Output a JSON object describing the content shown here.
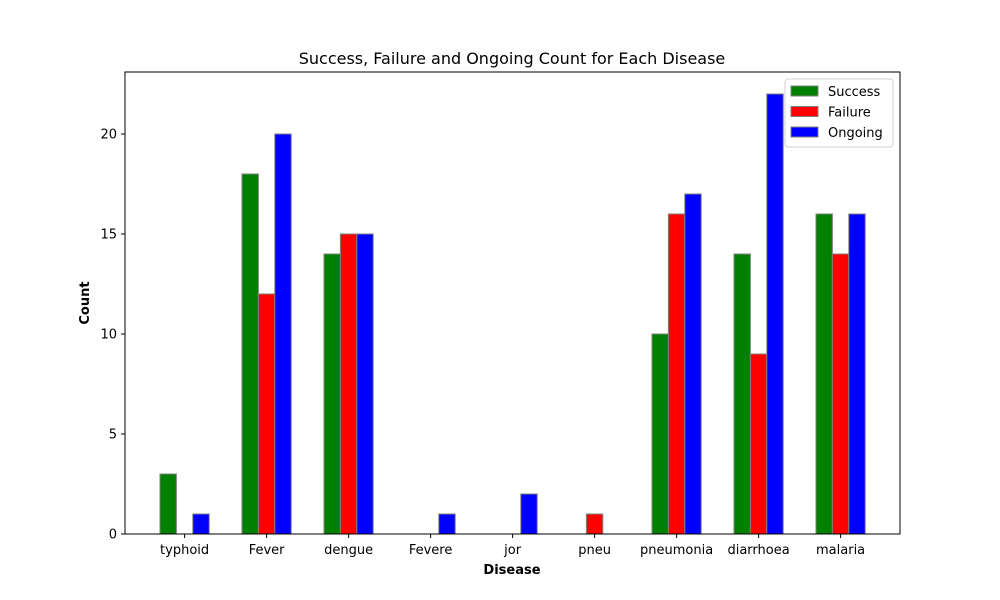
{
  "chart_data": {
    "type": "bar",
    "title": "Success, Failure and Ongoing Count for Each Disease",
    "xlabel": "Disease",
    "ylabel": "Count",
    "categories": [
      "typhoid",
      "Fever",
      "dengue",
      "Fevere",
      "jor",
      "pneu",
      "pneumonia",
      "diarrhoea",
      "malaria"
    ],
    "series": [
      {
        "name": "Success",
        "color": "#008000",
        "values": [
          3,
          18,
          14,
          0,
          0,
          0,
          10,
          14,
          16
        ]
      },
      {
        "name": "Failure",
        "color": "#ff0000",
        "values": [
          0,
          12,
          15,
          0,
          0,
          1,
          16,
          9,
          14
        ]
      },
      {
        "name": "Ongoing",
        "color": "#0000ff",
        "values": [
          1,
          20,
          15,
          1,
          2,
          0,
          17,
          22,
          16
        ]
      }
    ],
    "ylim": [
      0,
      23.1
    ],
    "yticks": [
      0,
      5,
      10,
      15,
      20
    ],
    "grid": false,
    "legend_position": "top-right"
  }
}
